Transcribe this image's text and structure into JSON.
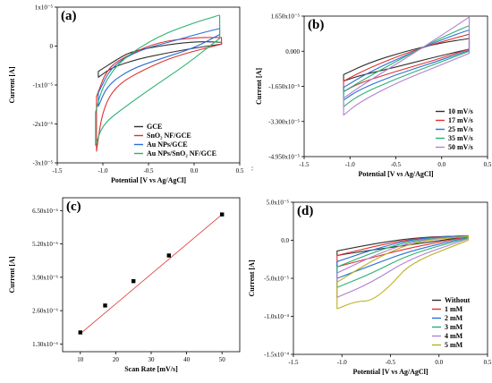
{
  "chart_data": [
    {
      "panel": "(a)",
      "type": "line",
      "xlabel": "Potential [V vs Ag/AgCl]",
      "ylabel": "Current [A]",
      "xlim": [
        -1.5,
        0.5
      ],
      "ylim": [
        -3e-05,
        1e-05
      ],
      "xticks": [
        "-1.5",
        "-1.0",
        "-0.5",
        "0.0",
        "0.5"
      ],
      "yticks": [
        "-3x10⁻⁵",
        "-2x10⁻⁵",
        "-1x10⁻⁵",
        "0",
        "1x10⁻⁵"
      ],
      "legend": "bottom-right",
      "series": [
        {
          "name": "GCE",
          "color": "#303030",
          "lower": [
            [
              -1.05,
              -8e-06
            ],
            [
              -0.9,
              -5.5e-06
            ],
            [
              -0.6,
              -3.2e-06
            ],
            [
              -0.3,
              -1.8e-06
            ],
            [
              0.0,
              -5e-07
            ],
            [
              0.3,
              5e-07
            ]
          ],
          "upper": [
            [
              -1.05,
              -6.5e-06
            ],
            [
              -0.85,
              -3.5e-06
            ],
            [
              -0.7,
              -1.5e-06
            ],
            [
              -0.4,
              0.0
            ],
            [
              0.0,
              1.2e-06
            ],
            [
              0.3,
              1e-06
            ]
          ]
        },
        {
          "name": "SnO₂ NF/GCE",
          "color": "#e03030",
          "lower": [
            [
              -1.07,
              -2.7e-05
            ],
            [
              -1.0,
              -1.6e-05
            ],
            [
              -0.85,
              -1e-05
            ],
            [
              -0.55,
              -6e-06
            ],
            [
              -0.2,
              -2.5e-06
            ],
            [
              0.3,
              5e-07
            ]
          ],
          "upper": [
            [
              -1.07,
              -1.3e-05
            ],
            [
              -0.95,
              -5.5e-06
            ],
            [
              -0.7,
              -2e-06
            ],
            [
              -0.4,
              1e-06
            ],
            [
              0.0,
              2.2e-06
            ],
            [
              0.3,
              2.2e-06
            ]
          ]
        },
        {
          "name": "Au NPs/GCE",
          "color": "#2a6fd6",
          "lower": [
            [
              -1.05,
              -1.55e-05
            ],
            [
              -0.95,
              -1e-05
            ],
            [
              -0.7,
              -6e-06
            ],
            [
              -0.4,
              -3.5e-06
            ],
            [
              0.0,
              -5e-07
            ],
            [
              0.28,
              3e-06
            ]
          ],
          "upper": [
            [
              -1.05,
              -1.2e-05
            ],
            [
              -0.9,
              -5e-06
            ],
            [
              -0.6,
              -1e-06
            ],
            [
              -0.2,
              1.5e-06
            ],
            [
              0.1,
              3.5e-06
            ],
            [
              0.28,
              4.5e-06
            ]
          ]
        },
        {
          "name": "Au NPs/SnO₂ NF/GCE",
          "color": "#2ab070",
          "lower": [
            [
              -1.08,
              -2.55e-05
            ],
            [
              -1.0,
              -2e-05
            ],
            [
              -0.75,
              -1.55e-05
            ],
            [
              -0.45,
              -1.05e-05
            ],
            [
              -0.1,
              -5e-06
            ],
            [
              0.28,
              2e-06
            ]
          ],
          "upper": [
            [
              -1.08,
              -1.7e-05
            ],
            [
              -1.0,
              -1e-05
            ],
            [
              -0.8,
              -3.5e-06
            ],
            [
              -0.4,
              2.5e-06
            ],
            [
              0.0,
              6e-06
            ],
            [
              0.28,
              8e-06
            ]
          ]
        }
      ]
    },
    {
      "panel": "(b)",
      "type": "line",
      "xlabel": "Potential [V vs Ag/AgCl]",
      "ylabel": "Current [A]",
      "xlim": [
        -1.5,
        0.5
      ],
      "ylim": [
        -4.95e-05,
        1.65e-05
      ],
      "xticks": [
        "-1.5",
        "-1.0",
        "-0.5",
        "0.0",
        "0.5"
      ],
      "yticks": [
        "-4.950x10⁻⁵",
        "-3.300x10⁻⁵",
        "-1.650x10⁻⁵",
        "0.000",
        "1.650x10⁻⁵"
      ],
      "legend": "bottom-right",
      "series": [
        {
          "name": "10 mV/s",
          "color": "#303030",
          "lower": [
            [
              -1.07,
              -1.4e-05
            ],
            [
              -0.9,
              -1.15e-05
            ],
            [
              -0.5,
              -7.5e-06
            ],
            [
              -0.1,
              -3e-06
            ],
            [
              0.3,
              1e-06
            ]
          ],
          "upper": [
            [
              -1.07,
              -1.1e-05
            ],
            [
              -0.8,
              -5.5e-06
            ],
            [
              -0.4,
              0.0
            ],
            [
              0.0,
              4e-06
            ],
            [
              0.3,
              6e-06
            ]
          ]
        },
        {
          "name": "17 mV/s",
          "color": "#e03030",
          "lower": [
            [
              -1.07,
              -1.9e-05
            ],
            [
              -0.9,
              -1.5e-05
            ],
            [
              -0.5,
              -9.5e-06
            ],
            [
              -0.1,
              -4.5e-06
            ],
            [
              0.3,
              1e-06
            ]
          ],
          "upper": [
            [
              -1.07,
              -1.4e-05
            ],
            [
              -0.8,
              -8e-06
            ],
            [
              -0.4,
              -1e-06
            ],
            [
              0.0,
              4.5e-06
            ],
            [
              0.3,
              8e-06
            ]
          ]
        },
        {
          "name": "25 mV/s",
          "color": "#2a6fd6",
          "lower": [
            [
              -1.07,
              -2.3e-05
            ],
            [
              -0.9,
              -1.8e-05
            ],
            [
              -0.5,
              -1.1e-05
            ],
            [
              -0.1,
              -5.5e-06
            ],
            [
              0.3,
              5e-07
            ]
          ],
          "upper": [
            [
              -1.07,
              -1.7e-05
            ],
            [
              -0.8,
              -1e-05
            ],
            [
              -0.4,
              -2e-06
            ],
            [
              0.0,
              5.5e-06
            ],
            [
              0.3,
              1e-05
            ]
          ]
        },
        {
          "name": "35 mV/s",
          "color": "#2ab070",
          "lower": [
            [
              -1.07,
              -2.6e-05
            ],
            [
              -0.9,
              -2.05e-05
            ],
            [
              -0.5,
              -1.3e-05
            ],
            [
              -0.1,
              -6.5e-06
            ],
            [
              0.3,
              0.0
            ]
          ],
          "upper": [
            [
              -1.07,
              -1.9e-05
            ],
            [
              -0.8,
              -1.2e-05
            ],
            [
              -0.4,
              -2.5e-06
            ],
            [
              0.0,
              6.5e-06
            ],
            [
              0.3,
              1.2e-05
            ]
          ]
        },
        {
          "name": "50 mV/s",
          "color": "#b080d0",
          "lower": [
            [
              -1.07,
              -3e-05
            ],
            [
              -0.9,
              -2.4e-05
            ],
            [
              -0.5,
              -1.5e-05
            ],
            [
              -0.1,
              -8e-06
            ],
            [
              0.3,
              -1e-06
            ]
          ],
          "upper": [
            [
              -1.07,
              -2.2e-05
            ],
            [
              -0.8,
              -1.4e-05
            ],
            [
              -0.4,
              -3.5e-06
            ],
            [
              0.0,
              7.5e-06
            ],
            [
              0.3,
              1.6e-05
            ]
          ]
        }
      ]
    },
    {
      "panel": "(c)",
      "type": "scatter",
      "xlabel": "Scan Rate [mV/s]",
      "ylabel": "Current [A]",
      "xlim": [
        5,
        55
      ],
      "ylim": [
        1e-06,
        7e-06
      ],
      "xticks": [
        "10",
        "20",
        "30",
        "40",
        "50"
      ],
      "yticks": [
        "1.30x10⁻⁶",
        "2.60x10⁻⁶",
        "3.90x10⁻⁶",
        "5.20x10⁻⁶",
        "6.50x10⁻⁶"
      ],
      "x": [
        10,
        17,
        25,
        35,
        50
      ],
      "y": [
        1.75e-06,
        2.8e-06,
        3.75e-06,
        4.75e-06,
        6.35e-06
      ],
      "fit": [
        [
          10,
          1.7e-06
        ],
        [
          50,
          6.35e-06
        ]
      ],
      "fit_color": "#e03030"
    },
    {
      "panel": "(d)",
      "type": "line",
      "xlabel": "Potential [V vs Ag/AgCl]",
      "ylabel": "Current [A]",
      "xlim": [
        -1.5,
        0.5
      ],
      "ylim": [
        -0.00015,
        5e-05
      ],
      "xticks": [
        "-1.5",
        "-1.0",
        "-0.5",
        "0.0",
        "0.5"
      ],
      "yticks": [
        "-1.5x10⁻⁴",
        "-1.0x10⁻⁴",
        "-5.0x10⁻⁵",
        "0.0",
        "5.0x10⁻⁵"
      ],
      "legend": "bottom-right",
      "series": [
        {
          "name": "Without",
          "color": "#303030",
          "lower": [
            [
              -1.05,
              -2e-05
            ],
            [
              -0.7,
              -1.3e-05
            ],
            [
              -0.3,
              -6e-06
            ],
            [
              0.3,
              5e-06
            ]
          ],
          "upper": [
            [
              -1.05,
              -1.4e-05
            ],
            [
              -0.6,
              -3e-06
            ],
            [
              -0.2,
              4e-06
            ],
            [
              0.3,
              6e-06
            ]
          ]
        },
        {
          "name": "1 mM",
          "color": "#e03030",
          "lower": [
            [
              -1.05,
              -3.5e-05
            ],
            [
              -0.7,
              -2.3e-05
            ],
            [
              -0.3,
              -1e-05
            ],
            [
              0.3,
              5e-06
            ]
          ],
          "upper": [
            [
              -1.05,
              -2e-05
            ],
            [
              -0.6,
              -6e-06
            ],
            [
              -0.2,
              3.5e-06
            ],
            [
              0.3,
              6e-06
            ]
          ]
        },
        {
          "name": "2 mM",
          "color": "#2a6fd6",
          "lower": [
            [
              -1.05,
              -5e-05
            ],
            [
              -0.7,
              -3.3e-05
            ],
            [
              -0.3,
              -1.4e-05
            ],
            [
              0.3,
              4e-06
            ]
          ],
          "upper": [
            [
              -1.05,
              -2.8e-05
            ],
            [
              -0.6,
              -9e-06
            ],
            [
              -0.2,
              3e-06
            ],
            [
              0.3,
              6e-06
            ]
          ]
        },
        {
          "name": "3 mM",
          "color": "#2ab070",
          "lower": [
            [
              -1.05,
              -6.2e-05
            ],
            [
              -0.7,
              -4.4e-05
            ],
            [
              -0.3,
              -1.8e-05
            ],
            [
              0.3,
              3e-06
            ]
          ],
          "upper": [
            [
              -1.05,
              -3.5e-05
            ],
            [
              -0.6,
              -1.2e-05
            ],
            [
              -0.2,
              2e-06
            ],
            [
              0.3,
              5e-06
            ]
          ]
        },
        {
          "name": "4 mM",
          "color": "#b080d0",
          "lower": [
            [
              -1.05,
              -7.5e-05
            ],
            [
              -0.7,
              -5.6e-05
            ],
            [
              -0.3,
              -2.4e-05
            ],
            [
              0.3,
              2e-06
            ]
          ],
          "upper": [
            [
              -1.05,
              -4.3e-05
            ],
            [
              -0.6,
              -1.6e-05
            ],
            [
              -0.2,
              1e-06
            ],
            [
              0.3,
              5e-06
            ]
          ]
        },
        {
          "name": "5 mM",
          "color": "#b8b020",
          "lower": [
            [
              -1.05,
              -9e-05
            ],
            [
              -0.85,
              -8e-05
            ],
            [
              -0.7,
              -8e-05
            ],
            [
              -0.5,
              -6e-05
            ],
            [
              -0.3,
              -3e-05
            ],
            [
              0.3,
              0.0
            ]
          ],
          "upper": [
            [
              -1.05,
              -5.5e-05
            ],
            [
              -0.6,
              -2e-05
            ],
            [
              -0.2,
              0.0
            ],
            [
              0.3,
              5e-06
            ]
          ]
        }
      ]
    }
  ]
}
